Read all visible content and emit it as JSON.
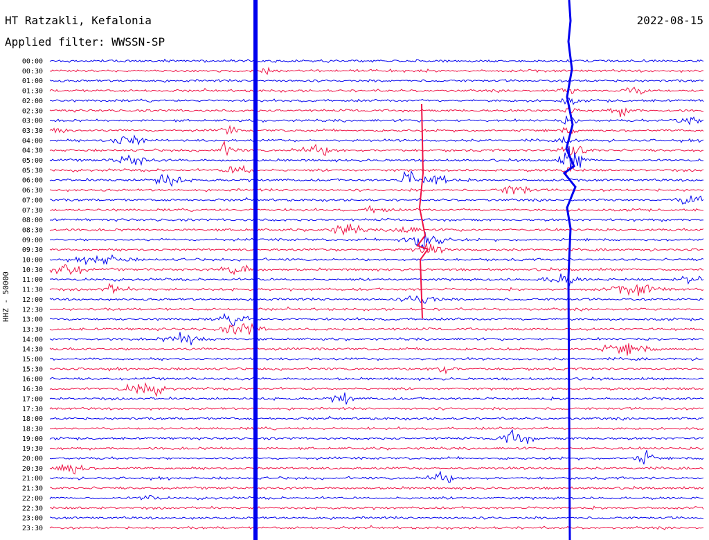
{
  "header": {
    "station": "HT Ratzakli, Kefalonia",
    "date": "2022-08-15",
    "filter": "Applied filter: WWSSN-SP"
  },
  "chart_data": {
    "type": "line",
    "ylabel": "HHZ - 50000",
    "rows": [
      "00:00",
      "00:30",
      "01:00",
      "01:30",
      "02:00",
      "02:30",
      "03:00",
      "03:30",
      "04:00",
      "04:30",
      "05:00",
      "05:30",
      "06:00",
      "06:30",
      "07:00",
      "07:30",
      "08:00",
      "08:30",
      "09:00",
      "09:30",
      "10:00",
      "10:30",
      "11:00",
      "11:30",
      "12:00",
      "12:30",
      "13:00",
      "13:30",
      "14:00",
      "14:30",
      "15:00",
      "15:30",
      "16:00",
      "16:30",
      "17:00",
      "17:30",
      "18:00",
      "18:30",
      "19:00",
      "19:30",
      "20:00",
      "20:30",
      "21:00",
      "21:30",
      "22:00",
      "22:30",
      "23:00",
      "23:30"
    ],
    "colors": [
      "#0000ee",
      "#ee1144"
    ],
    "grid": false
  }
}
